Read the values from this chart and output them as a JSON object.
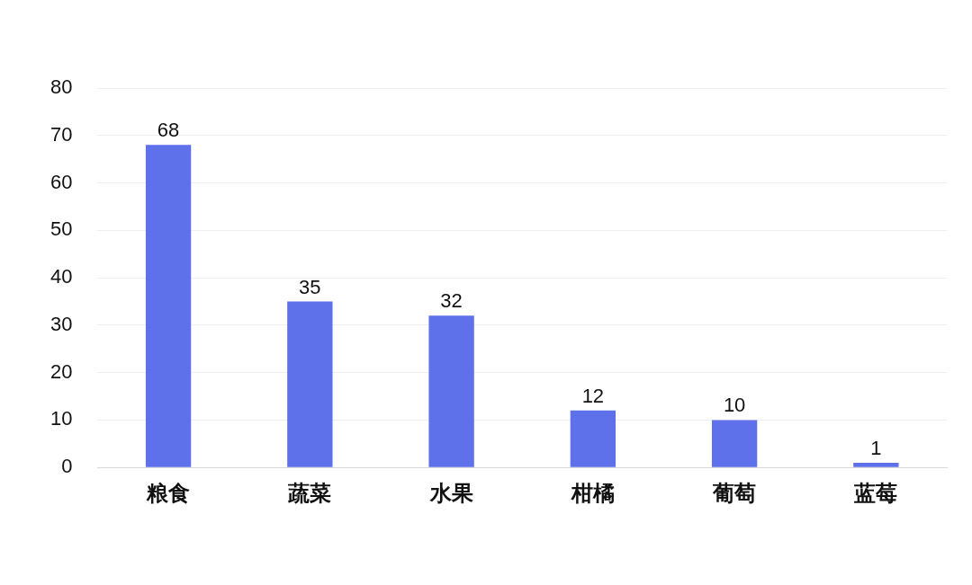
{
  "chart_data": {
    "type": "bar",
    "categories": [
      "粮食",
      "蔬菜",
      "水果",
      "柑橘",
      "葡萄",
      "蓝莓"
    ],
    "values": [
      68,
      35,
      32,
      12,
      10,
      1
    ],
    "color": "#5f71ea",
    "ylim": [
      0,
      80
    ],
    "yticks": [
      0,
      10,
      20,
      30,
      40,
      50,
      60,
      70,
      80
    ],
    "grid": "y",
    "data_labels": true,
    "legend": false
  }
}
